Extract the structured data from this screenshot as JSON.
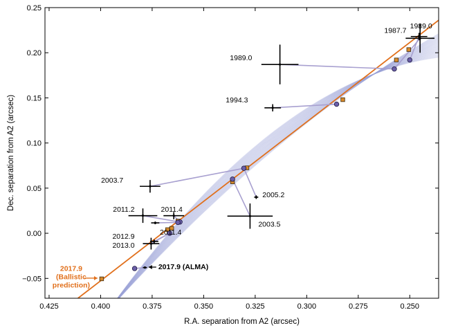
{
  "chart_data": {
    "type": "scatter",
    "xlabel": "R.A. separation from A2 (arcsec)",
    "ylabel": "Dec. separation from A2 (arcsec)",
    "xlim": [
      0.427,
      0.236
    ],
    "ylim": [
      -0.072,
      0.25
    ],
    "x_inverted": true,
    "grid": false,
    "xticks": [
      0.425,
      0.4,
      0.375,
      0.35,
      0.325,
      0.3,
      0.275,
      0.25
    ],
    "xtick_labels": [
      "0.425",
      "0.400",
      "0.375",
      "0.350",
      "0.325",
      "0.300",
      "0.275",
      "0.250"
    ],
    "yticks": [
      -0.05,
      0.0,
      0.05,
      0.1,
      0.15,
      0.2,
      0.25
    ],
    "ytick_labels": [
      "−0.05",
      "0.00",
      "0.05",
      "0.10",
      "0.15",
      "0.20",
      "0.25"
    ],
    "colors": {
      "observed": "#000000",
      "model": "#6b5fa8",
      "ballistic": "#e1701c",
      "connector": "#a8a0d0",
      "fan": "#9aa2d8",
      "ballistic_marker": "#d88a2a"
    },
    "ballistic_line": {
      "name": "Ballistic prediction",
      "points": [
        [
          0.411,
          -0.072
        ],
        [
          0.236,
          0.236
        ]
      ]
    },
    "orbit_fan": {
      "name": "Orbit fits",
      "n_curves": 30,
      "x0": 0.395,
      "x1": 0.236,
      "y_at_x1": [
        0.195,
        0.221
      ],
      "curvature": [
        0.8,
        1.9
      ]
    },
    "epochs": [
      {
        "label": "1987.7",
        "obs": [
          0.245,
          0.216
        ],
        "err": [
          0.007,
          0.016
        ],
        "model": [
          0.2575,
          0.182
        ],
        "ballistic": [
          0.2565,
          0.192
        ],
        "label_pos": [
          0.257,
          0.224
        ],
        "label_anchor": "middle"
      },
      {
        "label": "1989.0",
        "obs": [
          0.2455,
          0.218
        ],
        "err": [
          0.004,
          0.004
        ],
        "model": [
          0.25,
          0.192
        ],
        "ballistic": [
          0.2505,
          0.2035
        ],
        "label_pos": [
          0.2445,
          0.229
        ],
        "label_anchor": "middle"
      },
      {
        "label": "1989.0",
        "obs": [
          0.313,
          0.187
        ],
        "err": [
          0.009,
          0.022
        ],
        "model": [
          0.2575,
          0.182
        ],
        "ballistic": null,
        "label_pos": [
          0.3265,
          0.194
        ],
        "label_anchor": "end"
      },
      {
        "label": "1994.3",
        "obs": [
          0.3165,
          0.139
        ],
        "err": [
          0.004,
          0.004
        ],
        "model": [
          0.2855,
          0.143
        ],
        "ballistic": [
          0.2825,
          0.148
        ],
        "label_pos": [
          0.3285,
          0.147
        ],
        "label_anchor": "end"
      },
      {
        "label": "2003.7",
        "obs": [
          0.376,
          0.052
        ],
        "err": [
          0.005,
          0.007
        ],
        "model": [
          0.3305,
          0.072
        ],
        "ballistic": [
          0.329,
          0.0725
        ],
        "label_pos": [
          0.389,
          0.058
        ],
        "label_anchor": "end"
      },
      {
        "label": "2005.2",
        "obs": [
          0.3245,
          0.04
        ],
        "err": [
          0.001,
          0.002
        ],
        "model": [
          0.3305,
          0.072
        ],
        "ballistic": null,
        "label_pos": [
          0.3215,
          0.042
        ],
        "label_anchor": "start"
      },
      {
        "label": "2003.5",
        "obs": [
          0.3275,
          0.019
        ],
        "err": [
          0.011,
          0.014
        ],
        "model": [
          0.336,
          0.06
        ],
        "ballistic": [
          0.336,
          0.057
        ],
        "label_pos": [
          0.3235,
          0.0095
        ],
        "label_anchor": "start"
      },
      {
        "label": "2011.2",
        "obs": [
          0.3795,
          0.0195
        ],
        "err": [
          0.007,
          0.008
        ],
        "model": [
          0.3615,
          0.0125
        ],
        "ballistic": null,
        "label_pos": [
          0.3835,
          0.026
        ],
        "label_anchor": "end"
      },
      {
        "label": "2011.4",
        "obs": [
          0.3645,
          0.0195
        ],
        "err": [
          0.005,
          0.004
        ],
        "model": [
          0.3615,
          0.0125
        ],
        "ballistic": [
          0.3625,
          0.0135
        ],
        "label_pos": [
          0.3655,
          0.026
        ],
        "label_anchor": "middle"
      },
      {
        "label": "2011.4",
        "obs": [
          0.3735,
          0.0115
        ],
        "err": [
          0.002,
          0.0015
        ],
        "model": [
          0.3625,
          0.012
        ],
        "ballistic": null,
        "label_pos": [
          0.366,
          0.0005
        ],
        "label_anchor": "middle"
      },
      {
        "label": "2012.9",
        "obs": [
          0.374,
          -0.009
        ],
        "err": [
          0.002,
          0.002
        ],
        "model": [
          0.3665,
          0.0
        ],
        "ballistic": [
          0.3655,
          0.0055
        ],
        "label_pos": [
          0.3835,
          -0.004
        ],
        "label_anchor": "end"
      },
      {
        "label": "2013.0",
        "obs": [
          0.3755,
          -0.0115
        ],
        "err": [
          0.004,
          0.0065
        ],
        "model": [
          0.3665,
          0.0
        ],
        "ballistic": [
          0.3675,
          0.004
        ],
        "label_pos": [
          0.3835,
          -0.014
        ],
        "label_anchor": "end"
      },
      {
        "label": "2017.9 (ALMA)",
        "obs": [
          0.3785,
          -0.038
        ],
        "err": [
          0.001,
          0.001
        ],
        "model": [
          0.3835,
          -0.039
        ],
        "ballistic": null,
        "label_pos": [
          0.372,
          -0.0375
        ],
        "label_anchor": "start"
      }
    ],
    "ballistic_prediction": {
      "point": [
        0.3995,
        -0.0505
      ],
      "label_lines": [
        "2017.9",
        "(Ballistic",
        "prediction)"
      ]
    }
  }
}
